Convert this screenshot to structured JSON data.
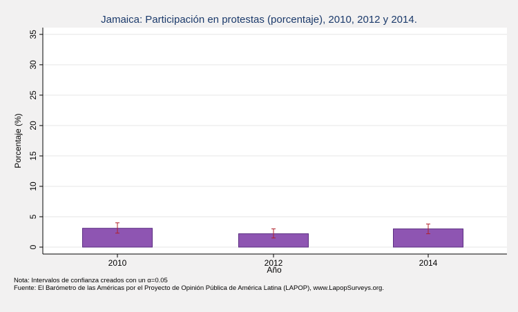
{
  "chart_data": {
    "type": "bar",
    "title": "Jamaica: Participación en protestas (porcentaje), 2010, 2012 y 2014.",
    "xlabel": "Año",
    "ylabel": "Porcentaje (%)",
    "categories": [
      "2010",
      "2012",
      "2014"
    ],
    "values": [
      3.1,
      2.2,
      3.0
    ],
    "ci_low": [
      2.3,
      1.5,
      2.2
    ],
    "ci_high": [
      4.0,
      3.0,
      3.8
    ],
    "ylim": [
      0,
      36
    ],
    "yticks": [
      0,
      5,
      10,
      15,
      20,
      25,
      30,
      35
    ],
    "grid": true,
    "bar_color": "#8e55b2",
    "bar_edge_color": "#5a2d80",
    "errorbar_color": "#b0202a",
    "plot_background": "#ffffff",
    "title_color": "#1b3a6b"
  },
  "notes": {
    "line1": "Nota: Intervalos de confianza creados con un α=0.05",
    "line2": "Fuente: El Barómetro de las Américas por el Proyecto de Opinión Pública de América Latina (LAPOP), www.LapopSurveys.org."
  }
}
